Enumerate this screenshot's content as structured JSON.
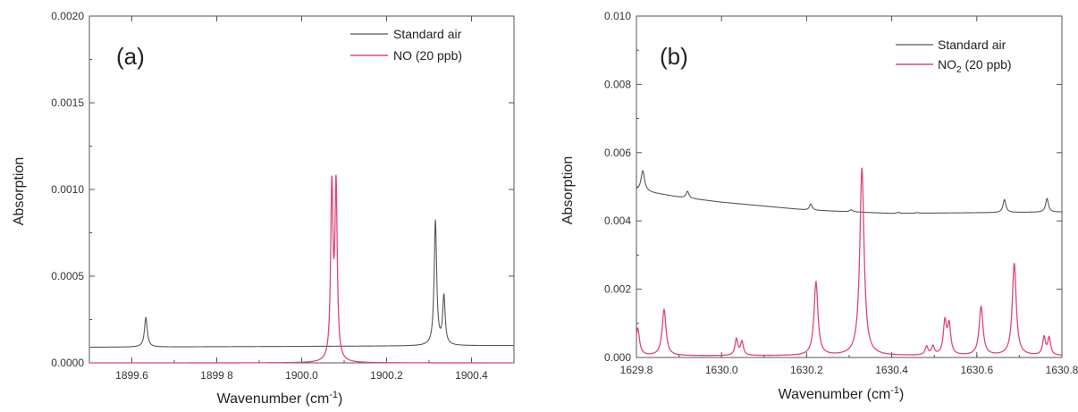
{
  "chart_data": [
    {
      "type": "line",
      "panel_label": "(a)",
      "xlabel": "Wavenumber (cm",
      "xlabel_sup": "-1",
      "xlabel_close": ")",
      "ylabel": "Absorption",
      "xlim": [
        1899.5,
        1900.5
      ],
      "ylim": [
        0,
        0.002
      ],
      "xticks": [
        1899.6,
        1899.8,
        1900.0,
        1900.2,
        1900.4
      ],
      "xtick_labels": [
        "1899.6",
        "1899 8",
        "1900.0",
        "1900.2",
        "1900.4"
      ],
      "yticks": [
        0,
        0.0005,
        0.001,
        0.0015,
        0.002
      ],
      "ytick_labels": [
        "0.0000",
        "0.0005",
        "0.0010",
        "0.0015",
        "0.0020"
      ],
      "legend_position": "top-right",
      "series": [
        {
          "name": "Standard air",
          "color": "#555555",
          "baseline": [
            [
              1899.5,
              9e-05
            ],
            [
              1900.5,
              0.0001
            ]
          ],
          "peaks": [
            {
              "x": 1899.633,
              "h": 0.00017,
              "w": 0.004
            },
            {
              "x": 1900.315,
              "h": 0.00072,
              "w": 0.0035
            },
            {
              "x": 1900.335,
              "h": 0.00028,
              "w": 0.0035
            }
          ]
        },
        {
          "name": "NO (20 ppb)",
          "color": "#e0457b",
          "baseline": [
            [
              1899.5,
              0.0
            ],
            [
              1900.5,
              0.0
            ]
          ],
          "peaks": [
            {
              "x": 1900.071,
              "h": 0.00099,
              "w": 0.0033
            },
            {
              "x": 1900.081,
              "h": 0.00099,
              "w": 0.0033
            }
          ]
        }
      ]
    },
    {
      "type": "line",
      "panel_label": "(b)",
      "xlabel": "Wavenumber (cm",
      "xlabel_sup": "-1",
      "xlabel_close": ")",
      "ylabel": "Absorption",
      "xlim": [
        1629.8,
        1630.8
      ],
      "ylim": [
        0,
        0.01
      ],
      "xticks": [
        1629.8,
        1630.0,
        1630.2,
        1630.4,
        1630.6,
        1630.8
      ],
      "xtick_labels": [
        "1629.8",
        "1630.0",
        "1630.2",
        "1630.4",
        "1630.6",
        "1630.8"
      ],
      "yticks": [
        0,
        0.002,
        0.004,
        0.006,
        0.008,
        0.01
      ],
      "ytick_labels": [
        "0.000",
        "0.002",
        "0.004",
        "0.006",
        "0.008",
        "0.010"
      ],
      "legend_position": "top-right",
      "series": [
        {
          "name": "Standard air",
          "color": "#555555",
          "baseline": [
            [
              1629.8,
              0.0049
            ],
            [
              1629.9,
              0.0047
            ],
            [
              1630.0,
              0.00455
            ],
            [
              1630.2,
              0.00432
            ],
            [
              1630.4,
              0.00422
            ],
            [
              1630.8,
              0.00426
            ]
          ],
          "peaks": [
            {
              "x": 1629.815,
              "h": 0.0006,
              "w": 0.005
            },
            {
              "x": 1629.92,
              "h": 0.0002,
              "w": 0.004
            },
            {
              "x": 1630.21,
              "h": 0.00018,
              "w": 0.004
            },
            {
              "x": 1630.305,
              "h": 6e-05,
              "w": 0.004
            },
            {
              "x": 1630.415,
              "h": 3e-05,
              "w": 0.004
            },
            {
              "x": 1630.46,
              "h": 2e-05,
              "w": 0.004
            },
            {
              "x": 1630.665,
              "h": 0.00038,
              "w": 0.004
            },
            {
              "x": 1630.765,
              "h": 0.0004,
              "w": 0.004
            }
          ]
        },
        {
          "name": "NO2 (20 ppb)",
          "name_main": "NO",
          "name_sub": "2",
          "name_rest": " (20 ppb)",
          "color": "#e0457b",
          "baseline": [
            [
              1629.8,
              5e-05
            ],
            [
              1630.8,
              5e-05
            ]
          ],
          "peaks": [
            {
              "x": 1629.803,
              "h": 0.0008,
              "w": 0.005
            },
            {
              "x": 1629.865,
              "h": 0.00135,
              "w": 0.0055
            },
            {
              "x": 1630.035,
              "h": 0.00048,
              "w": 0.004
            },
            {
              "x": 1630.048,
              "h": 0.0004,
              "w": 0.004
            },
            {
              "x": 1630.222,
              "h": 0.00215,
              "w": 0.0055
            },
            {
              "x": 1630.33,
              "h": 0.0055,
              "w": 0.006
            },
            {
              "x": 1630.482,
              "h": 0.00025,
              "w": 0.004
            },
            {
              "x": 1630.497,
              "h": 0.00025,
              "w": 0.004
            },
            {
              "x": 1630.525,
              "h": 0.00095,
              "w": 0.0045
            },
            {
              "x": 1630.535,
              "h": 0.00085,
              "w": 0.0045
            },
            {
              "x": 1630.61,
              "h": 0.00142,
              "w": 0.0055
            },
            {
              "x": 1630.688,
              "h": 0.0027,
              "w": 0.0055
            },
            {
              "x": 1630.758,
              "h": 0.00052,
              "w": 0.004
            },
            {
              "x": 1630.77,
              "h": 0.0005,
              "w": 0.004
            }
          ]
        }
      ]
    }
  ]
}
